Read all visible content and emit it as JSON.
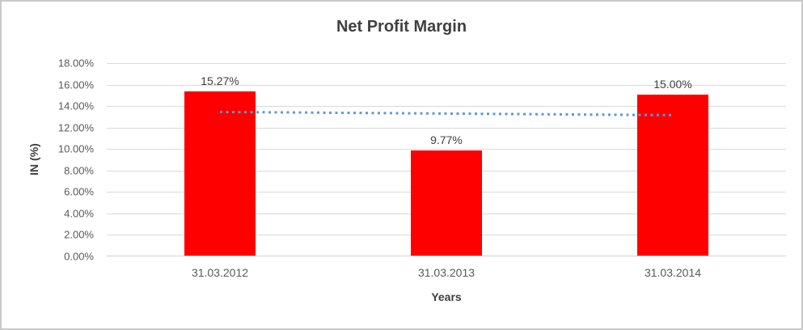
{
  "chart": {
    "title": "Net Profit Margin",
    "y_axis_title": "IN (%)",
    "x_axis_title": "Years"
  },
  "chart_data": {
    "type": "bar",
    "title": "Net Profit Margin",
    "xlabel": "Years",
    "ylabel": "IN (%)",
    "categories": [
      "31.03.2012",
      "31.03.2013",
      "31.03.2014"
    ],
    "values": [
      15.27,
      9.77,
      15.0
    ],
    "data_labels": [
      "15.27%",
      "9.77%",
      "15.00%"
    ],
    "ylim": [
      0,
      18
    ],
    "ytick_step": 2,
    "yticks": [
      {
        "value": 0,
        "label": "0.00%"
      },
      {
        "value": 2,
        "label": "2.00%"
      },
      {
        "value": 4,
        "label": "4.00%"
      },
      {
        "value": 6,
        "label": "6.00%"
      },
      {
        "value": 8,
        "label": "8.00%"
      },
      {
        "value": 10,
        "label": "10.00%"
      },
      {
        "value": 12,
        "label": "12.00%"
      },
      {
        "value": 14,
        "label": "14.00%"
      },
      {
        "value": 16,
        "label": "16.00%"
      },
      {
        "value": 18,
        "label": "18.00%"
      }
    ],
    "grid": true,
    "legend": "none",
    "colors": {
      "bar": "#ff0000",
      "trendline": "#5b9bd5",
      "gridline": "#d9d9d9",
      "axis_line": "#d0d0d0",
      "tick_text": "#595959",
      "title_text": "#404040",
      "frame_border": "#c9c9c9"
    },
    "trendline": {
      "style": "dotted",
      "color": "#5b9bd5",
      "start_value": 13.45,
      "end_value": 13.15
    }
  }
}
